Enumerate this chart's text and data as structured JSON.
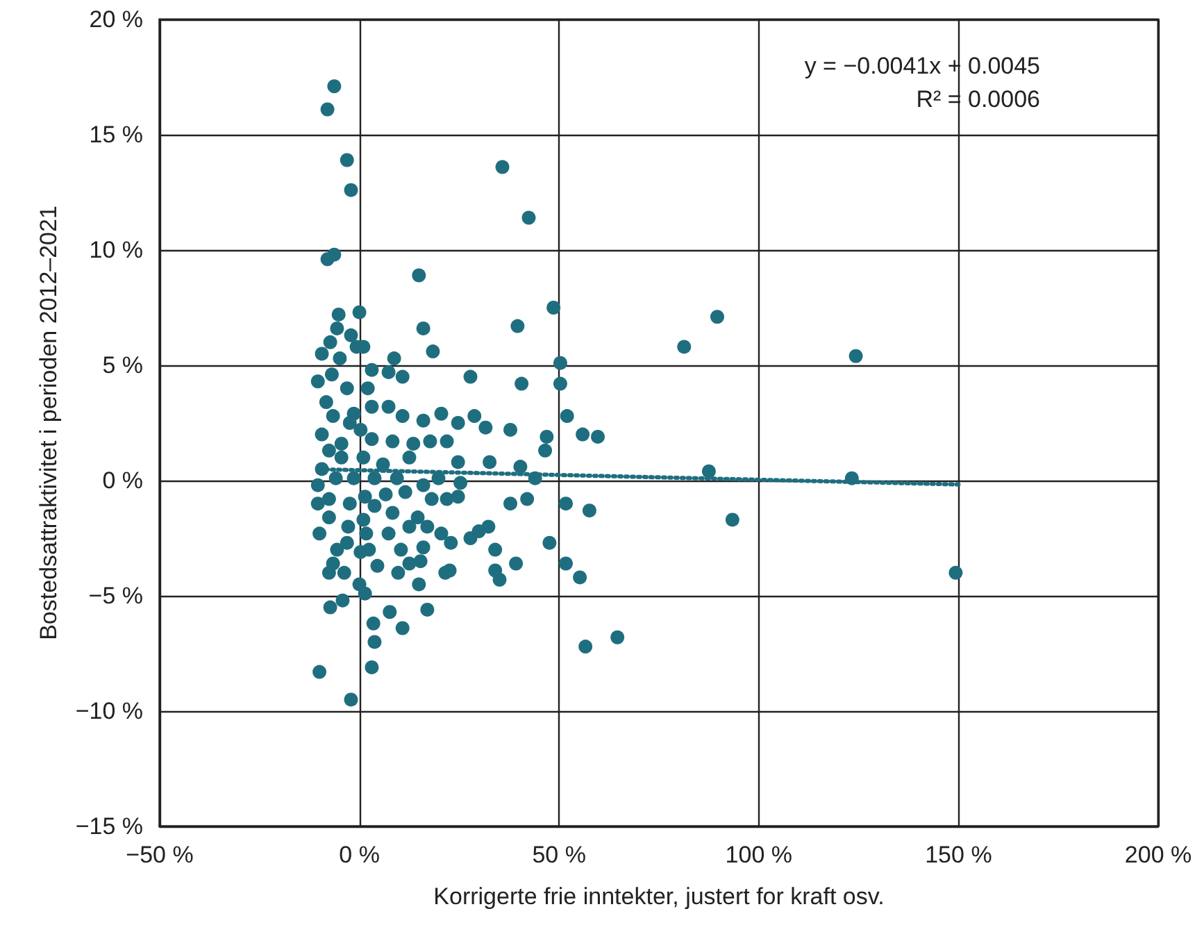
{
  "chart_data": {
    "type": "scatter",
    "xlabel": "Korrigerte frie inntekter, justert for kraft osv.",
    "ylabel": "Bostedsattraktivitet i perioden 2012–2021",
    "annotations": [
      "y = −0.0041x + 0.0045",
      "R² = 0.0006"
    ],
    "xlim": [
      -50,
      200
    ],
    "xticks": [
      {
        "value": -50,
        "label": "−50 %"
      },
      {
        "value": 0,
        "label": "0 %"
      },
      {
        "value": 50,
        "label": "50 %"
      },
      {
        "value": 100,
        "label": "100 %"
      },
      {
        "value": 150,
        "label": "150 %"
      },
      {
        "value": 200,
        "label": "200 %"
      }
    ],
    "ylim": [
      -15,
      20
    ],
    "yticks": [
      {
        "value": -15,
        "label": "−15 %"
      },
      {
        "value": -10,
        "label": "−10 %"
      },
      {
        "value": -5,
        "label": "−5 %"
      },
      {
        "value": 0,
        "label": "0 %"
      },
      {
        "value": 5,
        "label": "5 %"
      },
      {
        "value": 10,
        "label": "10 %"
      },
      {
        "value": 15,
        "label": "15 %"
      },
      {
        "value": 20,
        "label": "20 %"
      }
    ],
    "grid": true,
    "series": [
      {
        "color": "#1f6e80",
        "marker": "circle",
        "x": [
          -6.3,
          -8,
          -3.1,
          -2.1,
          -8,
          -6.3,
          35.8,
          42.4,
          14.9,
          -5.2,
          -5.6,
          0,
          16,
          39.6,
          48.6,
          89.6,
          81.3,
          124.3,
          50.3,
          50.3,
          40.6,
          27.8,
          18.4,
          52,
          46.9,
          46.5,
          55.9,
          59.7,
          37.8,
          31.6,
          28.8,
          87.5,
          123.3,
          93.4,
          149.3,
          51.7,
          57.6,
          47.6,
          51.7,
          55.2,
          56.6,
          64.6,
          39.2,
          35.1,
          34,
          42,
          37.8,
          44,
          40.3,
          32.6,
          25.3,
          29.9,
          32.3,
          24.7,
          21.9,
          17,
          20.5,
          22.9,
          16,
          15.3,
          22.6,
          17,
          10.8,
          3.5,
          3.8,
          3.1,
          7.6,
          1.4,
          -10,
          -2.1,
          -7.3,
          -4.2,
          0,
          9.7,
          12.5,
          10.4,
          7.3,
          12.5,
          14.6,
          8.3,
          3.8,
          1,
          -3.1,
          -6.6,
          -5.6,
          -10,
          -10.4,
          -7.6,
          -2.4,
          1.4,
          6.6,
          11.5,
          16,
          19.8,
          18.1,
          9.4,
          3.8,
          -1.4,
          -5.9,
          -9.4,
          -4.5,
          1,
          5.9,
          12.5,
          17.7,
          21.9,
          24.7,
          20.5,
          16,
          10.8,
          7.3,
          3.1,
          -1.4,
          -6.6,
          -8.3,
          -3.1,
          2.1,
          7.3,
          10.8,
          8.7,
          3.1,
          -0.7,
          -4.9,
          -9.4,
          -7.3,
          -2.1,
          1,
          -6.9,
          -10.4,
          -9.4,
          -4.5,
          3.1,
          8.3,
          13.5,
          0.3,
          -2.4,
          -7.6,
          -10.4,
          -7.6,
          -2.8,
          0.3,
          -7.6,
          2.4,
          -3.8,
          4.5,
          1.7,
          14.9,
          21.5,
          34,
          27.8,
          24.7
        ],
        "values": [
          17.1,
          16.1,
          13.9,
          12.6,
          9.6,
          9.8,
          13.6,
          11.4,
          8.9,
          7.2,
          6.6,
          7.3,
          6.6,
          6.7,
          7.5,
          7.1,
          5.8,
          5.4,
          5.1,
          4.2,
          4.2,
          4.5,
          5.6,
          2.8,
          1.9,
          1.3,
          2,
          1.9,
          2.2,
          2.3,
          2.8,
          0.4,
          0.1,
          -1.7,
          -4,
          -1,
          -1.3,
          -2.7,
          -3.6,
          -4.2,
          -7.2,
          -6.8,
          -3.6,
          -4.3,
          -3.9,
          -0.8,
          -1,
          0.1,
          0.6,
          0.8,
          -0.1,
          -2.2,
          -2,
          -0.7,
          -0.8,
          -2,
          -2.3,
          -2.7,
          -2.9,
          -3.5,
          -3.9,
          -5.6,
          -6.4,
          -6.2,
          -7,
          -8.1,
          -5.7,
          -4.9,
          -8.3,
          -9.5,
          -5.5,
          -5.2,
          -4.5,
          -4,
          -3.6,
          -3,
          -2.3,
          -2,
          -1.6,
          -1.4,
          -1.1,
          -1.7,
          -2.7,
          -3.6,
          -3,
          -2.3,
          -1,
          -0.8,
          -1,
          -0.7,
          -0.6,
          -0.5,
          -0.2,
          0.1,
          -0.8,
          0.1,
          0.1,
          0.1,
          0.1,
          0.5,
          1,
          1,
          0.7,
          1,
          1.7,
          1.7,
          2.5,
          2.9,
          2.6,
          2.8,
          3.2,
          3.2,
          2.9,
          2.8,
          3.4,
          4,
          4,
          4.7,
          4.5,
          5.3,
          4.8,
          5.8,
          5.3,
          5.5,
          6,
          6.3,
          5.8,
          4.6,
          4.3,
          2,
          1.6,
          1.8,
          1.7,
          1.6,
          2.2,
          2.5,
          1.3,
          -0.2,
          -1.6,
          -2,
          -3.1,
          -4,
          -3,
          -4,
          -3.7,
          -2.3,
          -4.5,
          -4,
          -3,
          -2.5,
          0.8
        ]
      },
      {
        "type": "line",
        "color": "#1f6e80",
        "marker": "none",
        "line_style": "dotted",
        "x": [
          -10,
          150
        ],
        "values": [
          0.49,
          -0.17
        ]
      }
    ]
  }
}
